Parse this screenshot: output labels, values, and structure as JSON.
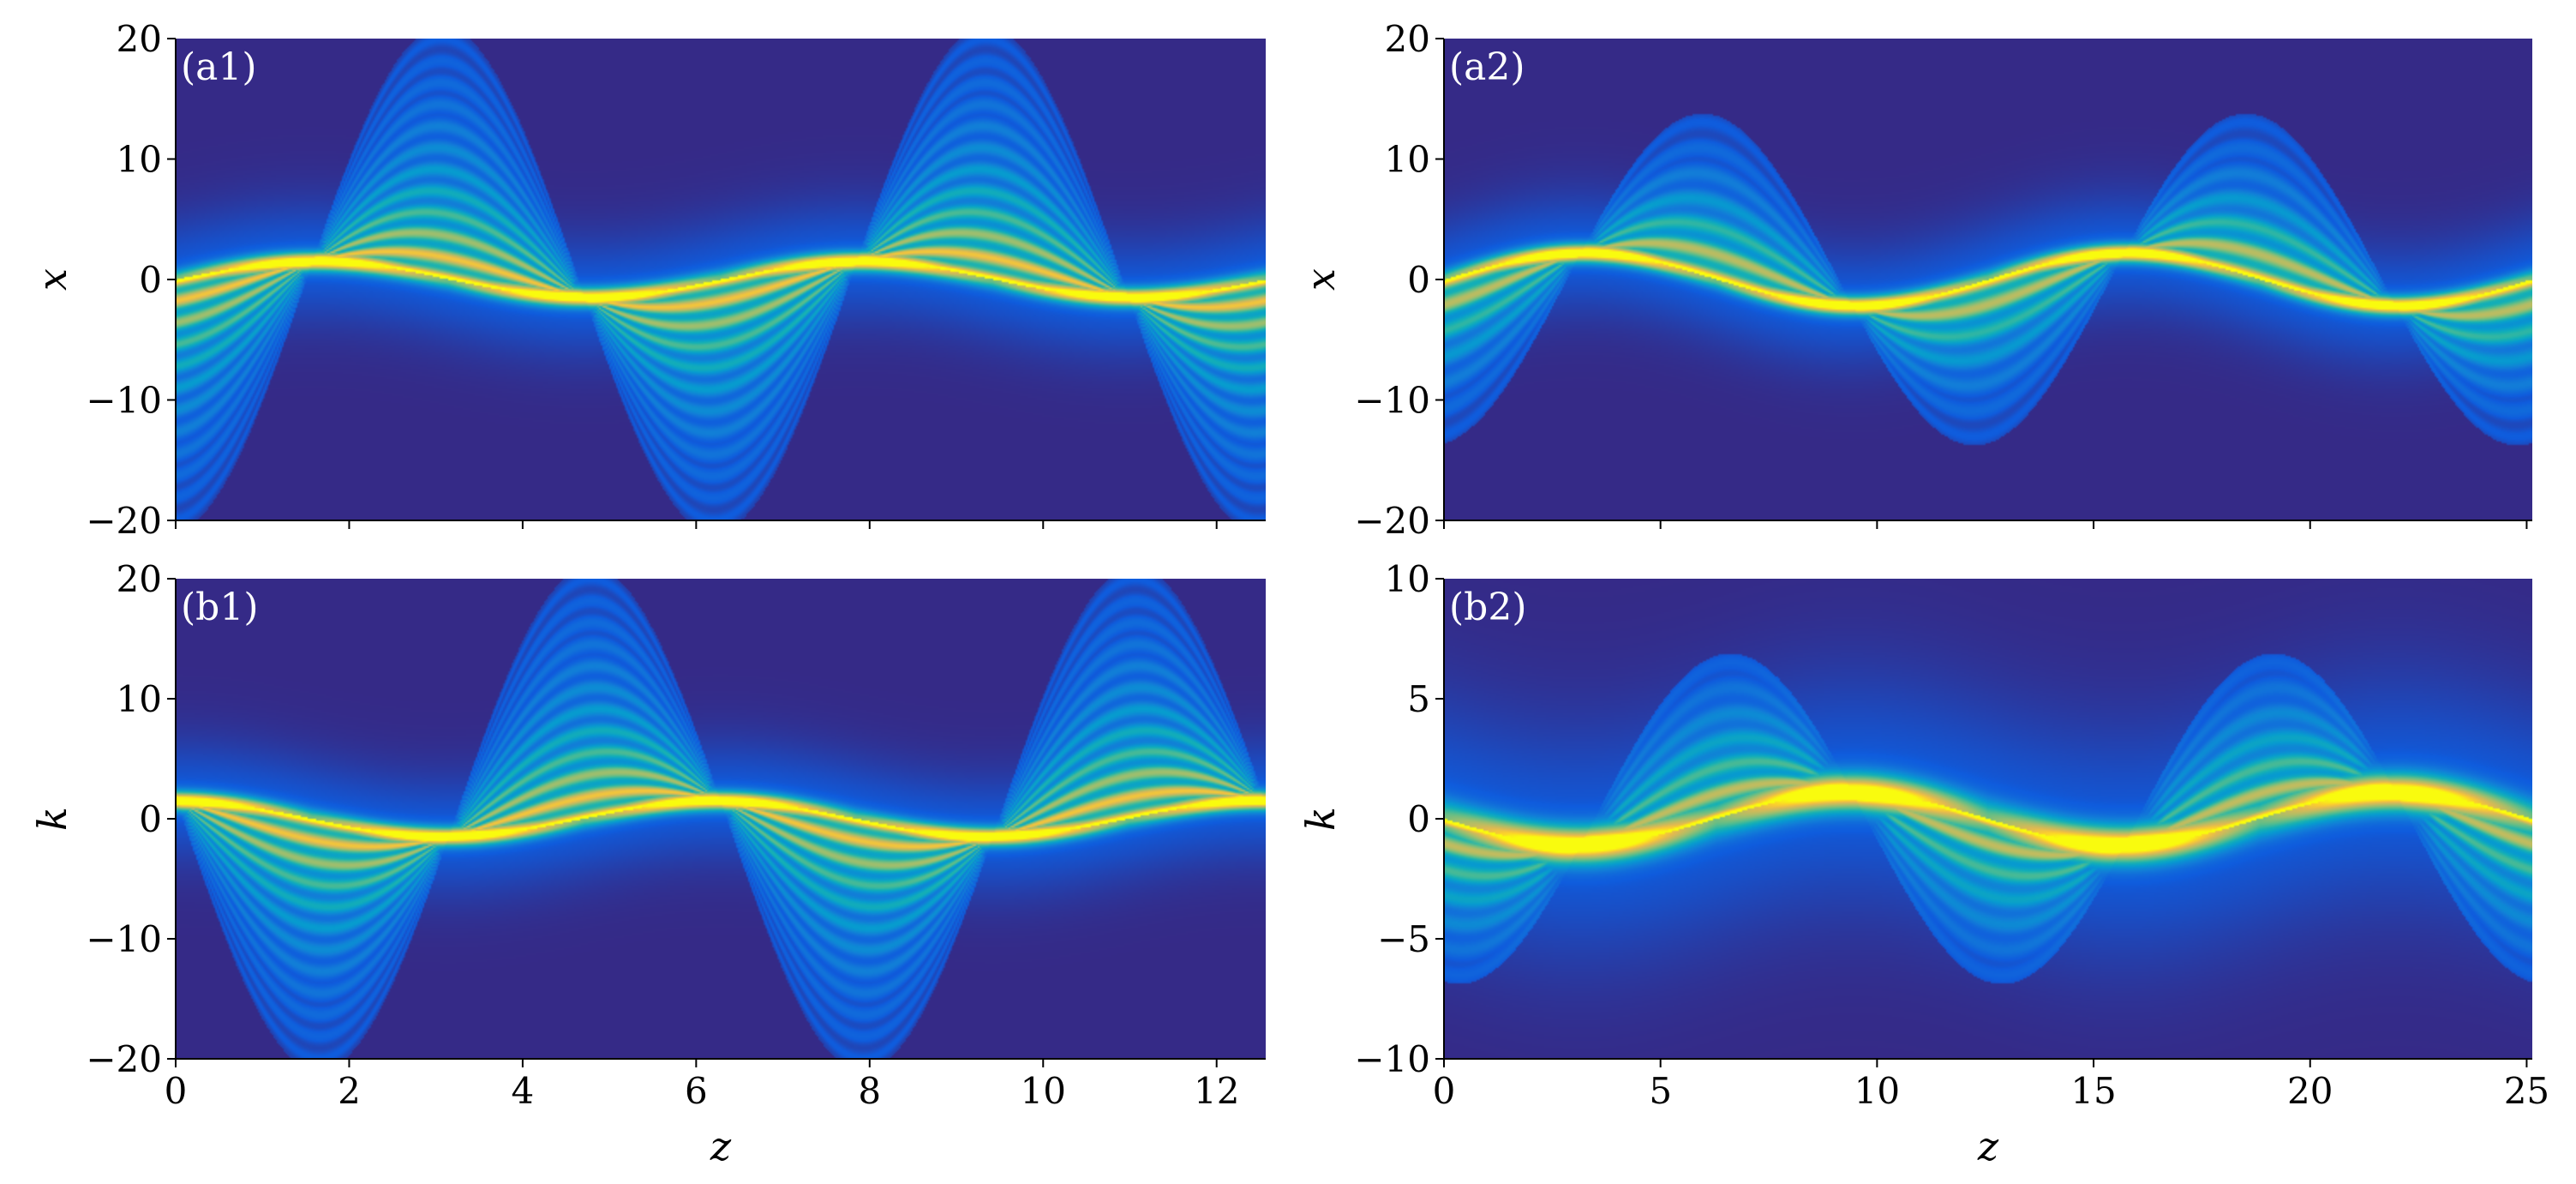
{
  "chart_data": [
    {
      "type": "heatmap",
      "panel_label": "(a1)",
      "xlabel": "",
      "ylabel": "x",
      "xlim": [
        0,
        12.566
      ],
      "ylim": [
        -20,
        20
      ],
      "xticks": [
        0,
        2,
        4,
        6,
        8,
        10,
        12
      ],
      "xtick_labels_shown": false,
      "yticks": [
        20,
        10,
        0,
        -10,
        -20
      ],
      "ytick_labels": [
        "20",
        "10",
        "0",
        "−10",
        "−20"
      ],
      "colormap": "parula",
      "field": {
        "period": 6.283,
        "tight_phase": 0,
        "tight_amplitude": 1.5,
        "fan_amplitude": 20,
        "fan_side": "negative-first",
        "fringe_count": 22
      }
    },
    {
      "type": "heatmap",
      "panel_label": "(a2)",
      "xlabel": "",
      "ylabel": "x",
      "xlim": [
        0,
        25.13
      ],
      "ylim": [
        -20,
        20
      ],
      "xticks": [
        0,
        5,
        10,
        15,
        20,
        25
      ],
      "xtick_labels_shown": false,
      "yticks": [
        20,
        10,
        0,
        -10,
        -20
      ],
      "ytick_labels": [
        "20",
        "10",
        "0",
        "−10",
        "−20"
      ],
      "colormap": "parula",
      "field": {
        "period": 12.566,
        "tight_phase": 0,
        "tight_amplitude": 2.2,
        "fan_amplitude": 13,
        "fan_side": "negative-first",
        "fringe_count": 12
      }
    },
    {
      "type": "heatmap",
      "panel_label": "(b1)",
      "xlabel": "z",
      "ylabel": "k",
      "xlim": [
        0,
        12.566
      ],
      "ylim": [
        -20,
        20
      ],
      "xticks": [
        0,
        2,
        4,
        6,
        8,
        10,
        12
      ],
      "xtick_labels": [
        "0",
        "2",
        "4",
        "6",
        "8",
        "10",
        "12"
      ],
      "yticks": [
        20,
        10,
        0,
        -10,
        -20
      ],
      "ytick_labels": [
        "20",
        "10",
        "0",
        "−10",
        "−20"
      ],
      "colormap": "parula",
      "field": {
        "period": 6.283,
        "tight_phase": 1.571,
        "tight_amplitude": 1.5,
        "fan_amplitude": 20,
        "fan_side": "positive-first",
        "fringe_count": 22
      }
    },
    {
      "type": "heatmap",
      "panel_label": "(b2)",
      "xlabel": "z",
      "ylabel": "k",
      "xlim": [
        0,
        25.13
      ],
      "ylim": [
        -10,
        10
      ],
      "xticks": [
        0,
        5,
        10,
        15,
        20,
        25
      ],
      "xtick_labels": [
        "0",
        "5",
        "10",
        "15",
        "20",
        "25"
      ],
      "yticks": [
        10,
        5,
        0,
        -5,
        -10
      ],
      "ytick_labels": [
        "10",
        "5",
        "0",
        "−5",
        "−10"
      ],
      "colormap": "parula",
      "field": {
        "period": 12.566,
        "tight_phase": 3.142,
        "tight_amplitude": 1.1,
        "fan_amplitude": 6.5,
        "fan_side": "positive-first",
        "fringe_count": 12
      }
    }
  ],
  "colors": {
    "background": "#352a87",
    "axis": "#000000",
    "label_on_plot": "#ffffff"
  }
}
